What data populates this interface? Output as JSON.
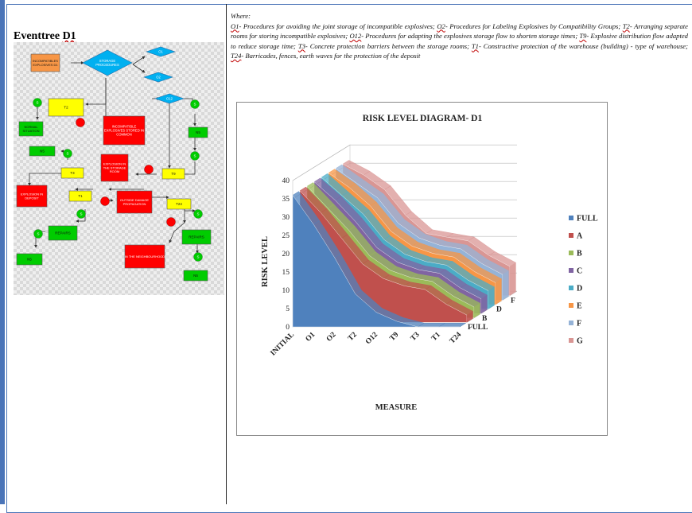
{
  "left_panel": {
    "title_prefix": "Eventtree",
    "title_code": "D1"
  },
  "event_tree": {
    "nodes": {
      "incompatible": "INCOMPATIBLES EXPLOSIVES D1",
      "storage": "STORAGE PROCEDURES",
      "o1": "O1",
      "o2": "O2",
      "t2": "T2",
      "normal": "NORMAL SITUATION",
      "common": "INCOMPATIBLE EXPLOSIVES STORED IN COMMON",
      "o12": "O12",
      "n5a": "N5",
      "t9": "T9",
      "n5b": "N5",
      "t3": "T3",
      "expl_room": "EXPLOSION IN THE STORAGE ROOM",
      "expl_depot": "EXPLOSION IN DEPOSIT",
      "t1": "T1",
      "outside": "OUTSIDE DAMAGE PROPAGATION",
      "t24": "T24",
      "repairs1": "REPAIRS",
      "repairs2": "REPAIRS",
      "n5c": "N5",
      "neighbour": "IN THE NEIGHBOURHOOD",
      "n5d": "N5"
    },
    "s_label": "S",
    "colors": {
      "orange": "#f79646",
      "blue": "#00b0f0",
      "yellow": "#ffff00",
      "green": "#00cc00",
      "red": "#ff0000"
    }
  },
  "legend": {
    "where": "Where:",
    "items": [
      {
        "code": "O1",
        "text": "- Procedures  for avoiding the joint storage of incompatible  explosives;"
      },
      {
        "code": "O2",
        "text": "- Procedures  for Labeling Explosives by Compatibility Groups;"
      },
      {
        "code": "T2",
        "text": "- Arranging separate rooms for storing incompatible explosives;"
      },
      {
        "code": "O12",
        "text": "- Procedures  for adapting the explosives  storage flow to shorten storage times;"
      },
      {
        "code": "T9",
        "text": "- Explosive distribution flow adapted to reduce storage time;"
      },
      {
        "code": "T3",
        "text": "- Concrete protection barriers between  the storage rooms;"
      },
      {
        "code": "T1",
        "text": "- Constructive protection of the warehouse (building) - type of warehouse;"
      },
      {
        "code": "T24",
        "text": "- Barricades, fences, earth waves for the protection of the deposit"
      }
    ]
  },
  "chart_data": {
    "type": "area",
    "title": "RISK LEVEL DIAGRAM- D1",
    "xlabel": "MEASURE",
    "ylabel": "RISK LEVEL",
    "ylim": [
      0,
      40
    ],
    "yticks": [
      0,
      5,
      10,
      15,
      20,
      25,
      30,
      35,
      40
    ],
    "categories": [
      "INITIAL",
      "O1",
      "O2",
      "T2",
      "O12",
      "T9",
      "T3",
      "T1",
      "T24"
    ],
    "depth_labels": [
      "FULL",
      "B",
      "D",
      "F"
    ],
    "legend_position": "right",
    "series": [
      {
        "name": "FULL",
        "color": "#4f81bd",
        "values": [
          36,
          28,
          19,
          9,
          4,
          1.5,
          0,
          0,
          0
        ]
      },
      {
        "name": "A",
        "color": "#c0504d",
        "values": [
          36,
          30,
          23,
          16,
          12,
          10,
          9,
          5,
          2
        ]
      },
      {
        "name": "B",
        "color": "#9bbb59",
        "values": [
          36,
          30,
          24,
          17,
          13,
          11,
          10,
          6,
          3
        ]
      },
      {
        "name": "C",
        "color": "#8064a2",
        "values": [
          36,
          31,
          25,
          18,
          14,
          12,
          11,
          7,
          4
        ]
      },
      {
        "name": "D",
        "color": "#4bacc6",
        "values": [
          36,
          31,
          26,
          19,
          15,
          13,
          12,
          8,
          5
        ]
      },
      {
        "name": "E",
        "color": "#f79646",
        "values": [
          36,
          32,
          27,
          20,
          16,
          14,
          13,
          9,
          6
        ]
      },
      {
        "name": "F",
        "color": "#95b3d7",
        "values": [
          36,
          32,
          28,
          21,
          17,
          15,
          14,
          10,
          7
        ]
      },
      {
        "name": "G",
        "color": "#d99694",
        "values": [
          36,
          33,
          29,
          22,
          17,
          16,
          15,
          11,
          8
        ]
      }
    ]
  }
}
